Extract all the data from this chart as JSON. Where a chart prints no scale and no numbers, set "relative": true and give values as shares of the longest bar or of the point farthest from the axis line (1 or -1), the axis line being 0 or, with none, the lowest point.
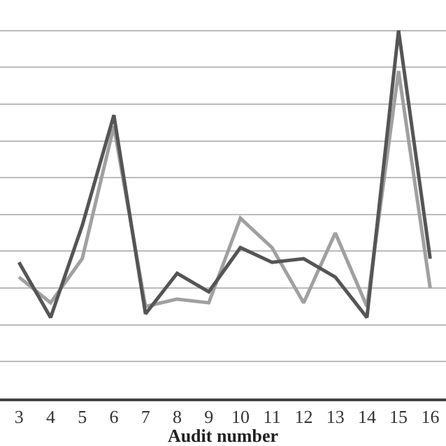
{
  "chart_data": {
    "type": "line",
    "xlabel": "Audit number",
    "relative": true,
    "grid": "y",
    "legend": false,
    "marker": "none",
    "line_style": "solid",
    "categories": [
      "3",
      "4",
      "5",
      "6",
      "7",
      "8",
      "9",
      "10",
      "11",
      "12",
      "13",
      "14",
      "15",
      "16"
    ],
    "series": [
      {
        "color": "#a0a0a0",
        "values": [
          0.33,
          0.26,
          0.38,
          0.74,
          0.25,
          0.27,
          0.26,
          0.49,
          0.41,
          0.26,
          0.45,
          0.25,
          0.89,
          0.3
        ]
      },
      {
        "color": "#555555",
        "values": [
          0.37,
          0.22,
          0.47,
          0.77,
          0.23,
          0.34,
          0.29,
          0.41,
          0.37,
          0.38,
          0.33,
          0.22,
          1,
          0.38
        ]
      }
    ]
  }
}
